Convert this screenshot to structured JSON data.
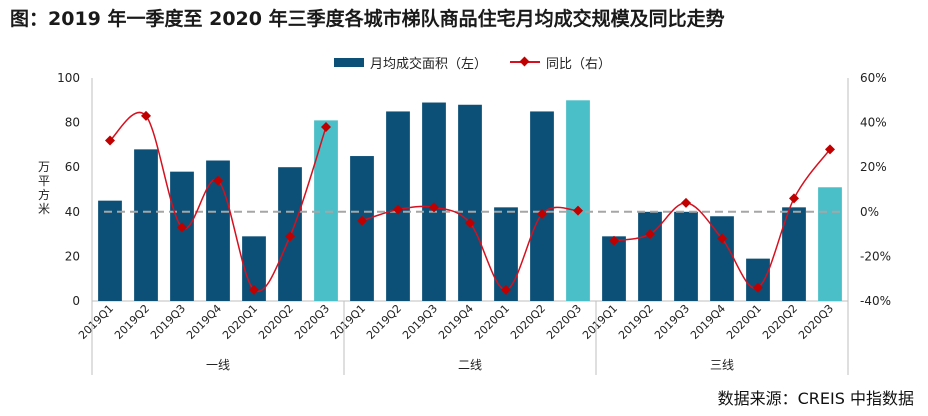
{
  "chart_data": {
    "type": "bar",
    "title": "图：2019 年一季度至 2020 年三季度各城市梯队商品住宅月均成交规模及同比走势",
    "ylabel": "万平方米",
    "ylim": [
      0,
      100
    ],
    "y2lim": [
      -40,
      60
    ],
    "y_ticks": [
      "0",
      "20",
      "40",
      "60",
      "80",
      "100"
    ],
    "y2_ticks": [
      "-40%",
      "-20%",
      "0%",
      "20%",
      "40%",
      "60%"
    ],
    "groups": [
      {
        "name": "一线",
        "categories": [
          "2019Q1",
          "2019Q2",
          "2019Q3",
          "2019Q4",
          "2020Q1",
          "2020Q2",
          "2020Q3"
        ]
      },
      {
        "name": "二线",
        "categories": [
          "2019Q1",
          "2019Q2",
          "2019Q3",
          "2019Q4",
          "2020Q1",
          "2020Q2",
          "2020Q3"
        ]
      },
      {
        "name": "三线",
        "categories": [
          "2019Q1",
          "2019Q2",
          "2019Q3",
          "2019Q4",
          "2020Q1",
          "2020Q2",
          "2020Q3"
        ]
      }
    ],
    "series": [
      {
        "name": "月均成交面积（左）",
        "axis": "left",
        "type": "bar",
        "values": [
          45,
          68,
          58,
          63,
          29,
          60,
          81,
          65,
          85,
          89,
          88,
          42,
          85,
          90,
          29,
          40,
          40,
          38,
          19,
          42,
          51
        ]
      },
      {
        "name": "同比（右）",
        "axis": "right",
        "type": "line",
        "values": [
          32,
          43,
          -7,
          14,
          -35,
          -11,
          38,
          -4,
          1,
          2,
          -5,
          -35,
          -1,
          0.5,
          -13,
          -10,
          4,
          -12,
          -34,
          6,
          28
        ]
      }
    ],
    "highlight_category": "2020Q3",
    "reference_line": 0,
    "colors": {
      "bar": "#0c5077",
      "bar_highlight": "#4bbfc8",
      "line": "#d6101e",
      "marker": "#c00000",
      "reference": "#a6a6a6"
    }
  },
  "source": "数据来源：CREIS 中指数据"
}
